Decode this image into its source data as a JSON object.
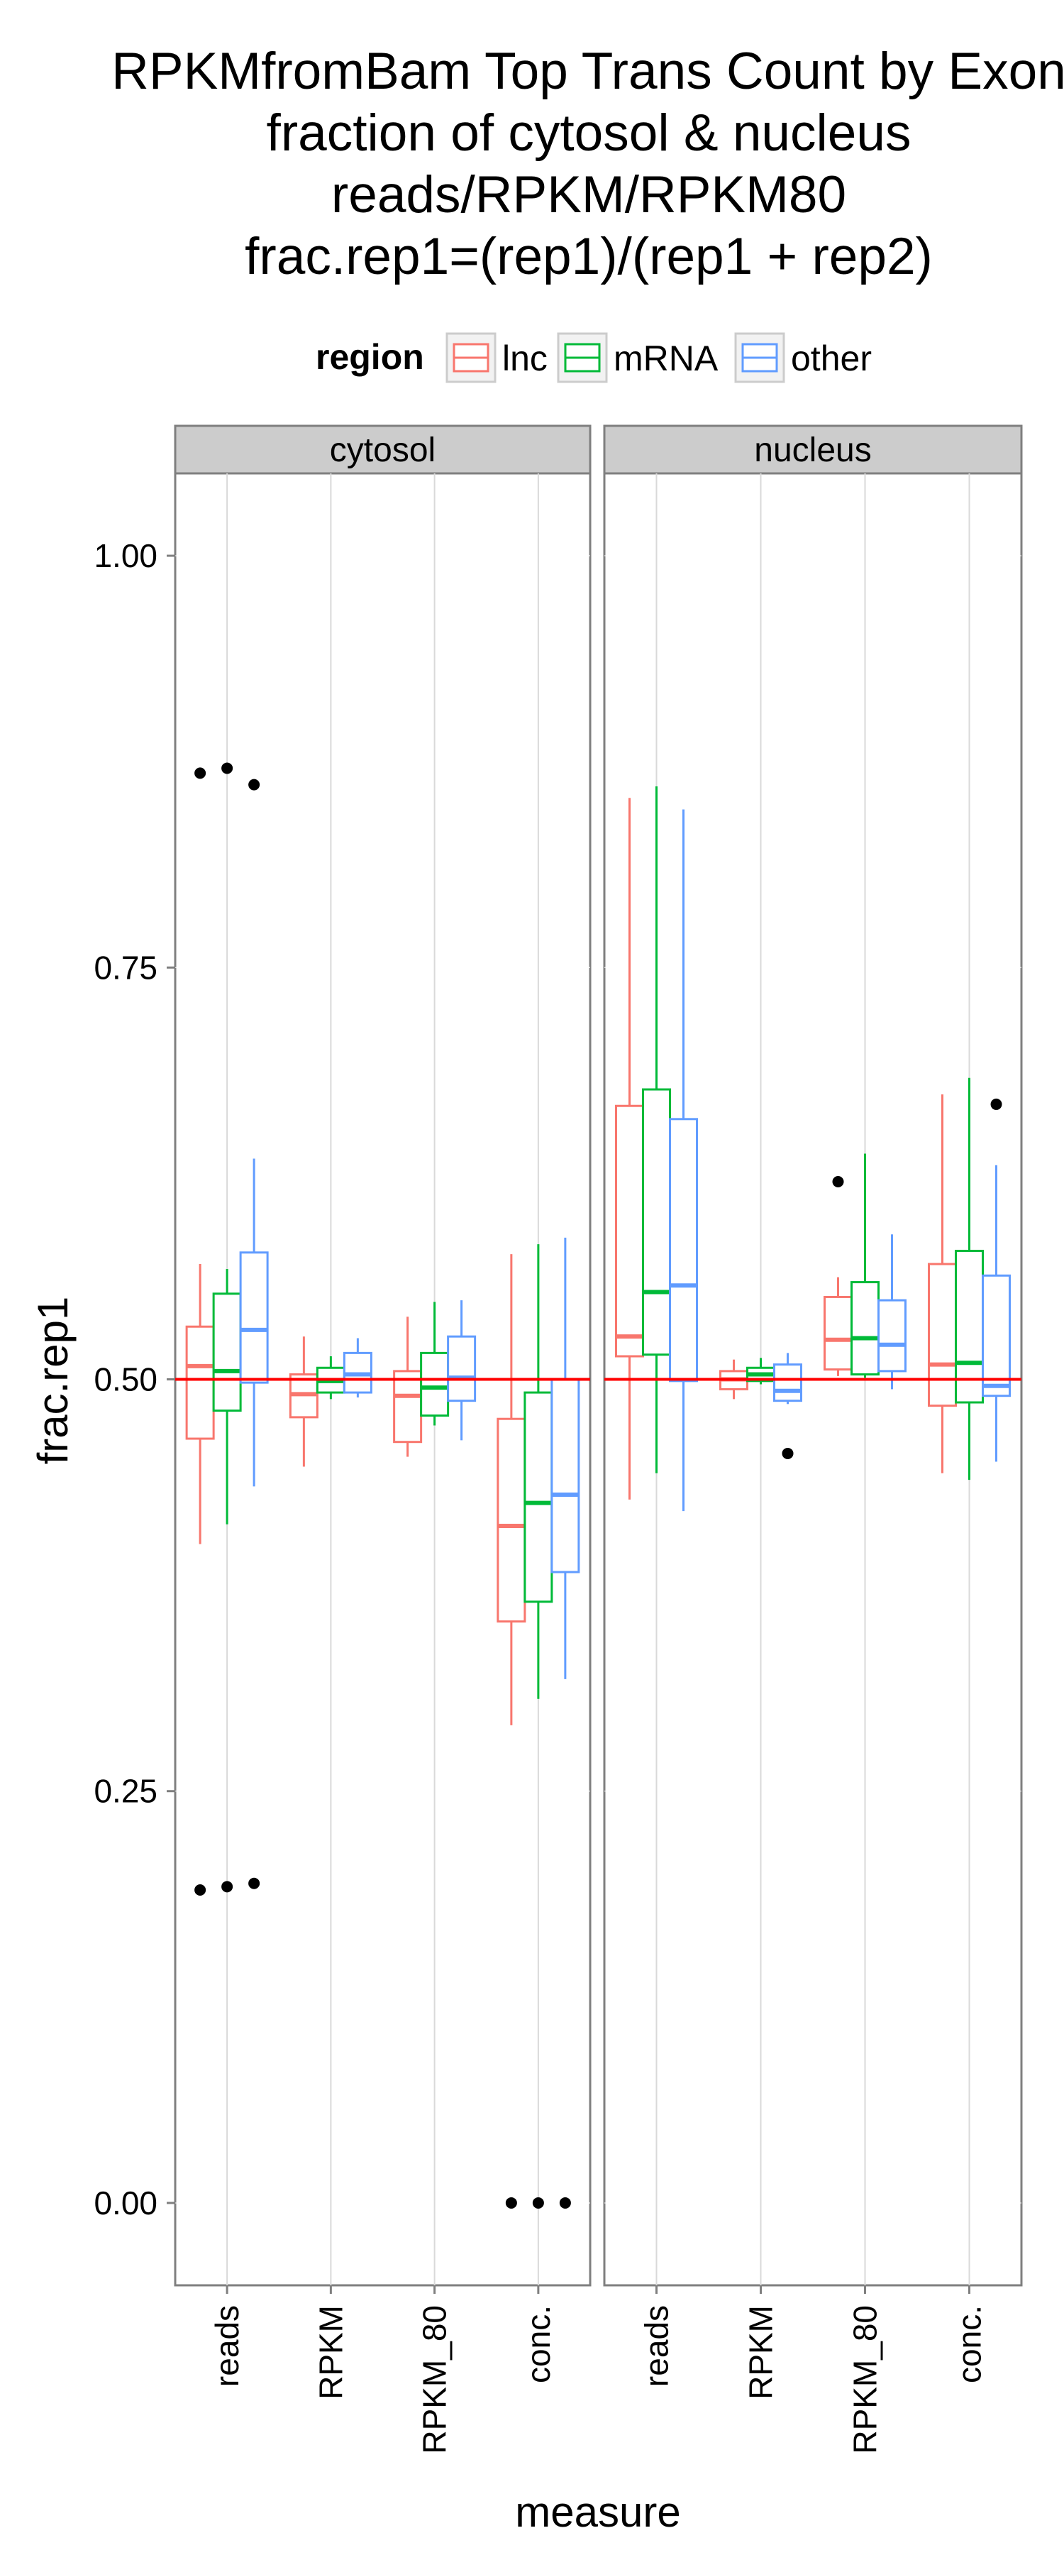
{
  "chart_data": {
    "type": "boxplot",
    "title_lines": [
      "RPKMfromBam Top Trans Count by Exon",
      "fraction of cytosol & nucleus",
      "reads/RPKM/RPKM80",
      "frac.rep1=(rep1)/(rep1 + rep2)"
    ],
    "xlabel": "measure",
    "ylabel": "frac.rep1",
    "ylim": [
      -0.05,
      1.05
    ],
    "y_ticks": [
      0.0,
      0.25,
      0.5,
      0.75,
      1.0
    ],
    "y_tick_labels": [
      "0.00",
      "0.25",
      "0.50",
      "0.75",
      "1.00"
    ],
    "categories": [
      "reads",
      "RPKM",
      "RPKM_80",
      "conc."
    ],
    "reference_line": 0.5,
    "legend": {
      "title": "region",
      "position": "top",
      "entries": [
        "lnc",
        "mRNA",
        "other"
      ]
    },
    "series_colors": {
      "lnc": "#F8766D",
      "mRNA": "#00BA38",
      "other": "#619CFF"
    },
    "panels": [
      {
        "label": "cytosol",
        "boxes": {
          "lnc": [
            {
              "lo": 0.4,
              "q1": 0.464,
              "med": 0.508,
              "q3": 0.532,
              "hi": 0.57,
              "out": [
                0.868,
                0.19
              ]
            },
            {
              "lo": 0.447,
              "q1": 0.477,
              "med": 0.491,
              "q3": 0.503,
              "hi": 0.526,
              "out": []
            },
            {
              "lo": 0.453,
              "q1": 0.462,
              "med": 0.49,
              "q3": 0.505,
              "hi": 0.538,
              "out": []
            },
            {
              "lo": 0.29,
              "q1": 0.353,
              "med": 0.411,
              "q3": 0.476,
              "hi": 0.576,
              "out": [
                0.0
              ]
            }
          ],
          "mRNA": [
            {
              "lo": 0.412,
              "q1": 0.481,
              "med": 0.505,
              "q3": 0.552,
              "hi": 0.567,
              "out": [
                0.871,
                0.192
              ]
            },
            {
              "lo": 0.488,
              "q1": 0.492,
              "med": 0.499,
              "q3": 0.507,
              "hi": 0.514,
              "out": []
            },
            {
              "lo": 0.472,
              "q1": 0.478,
              "med": 0.495,
              "q3": 0.516,
              "hi": 0.547,
              "out": []
            },
            {
              "lo": 0.306,
              "q1": 0.365,
              "med": 0.425,
              "q3": 0.492,
              "hi": 0.582,
              "out": [
                0.0
              ]
            }
          ],
          "other": [
            {
              "lo": 0.435,
              "q1": 0.498,
              "med": 0.53,
              "q3": 0.577,
              "hi": 0.634,
              "out": [
                0.861,
                0.194
              ]
            },
            {
              "lo": 0.489,
              "q1": 0.492,
              "med": 0.503,
              "q3": 0.516,
              "hi": 0.525,
              "out": []
            },
            {
              "lo": 0.463,
              "q1": 0.487,
              "med": 0.501,
              "q3": 0.526,
              "hi": 0.548,
              "out": []
            },
            {
              "lo": 0.318,
              "q1": 0.383,
              "med": 0.43,
              "q3": 0.5,
              "hi": 0.586,
              "out": [
                0.0
              ]
            }
          ]
        }
      },
      {
        "label": "nucleus",
        "boxes": {
          "lnc": [
            {
              "lo": 0.427,
              "q1": 0.514,
              "med": 0.526,
              "q3": 0.666,
              "hi": 0.853,
              "out": []
            },
            {
              "lo": 0.488,
              "q1": 0.494,
              "med": 0.5,
              "q3": 0.505,
              "hi": 0.512,
              "out": []
            },
            {
              "lo": 0.502,
              "q1": 0.506,
              "med": 0.524,
              "q3": 0.55,
              "hi": 0.562,
              "out": [
                0.62
              ]
            },
            {
              "lo": 0.443,
              "q1": 0.484,
              "med": 0.509,
              "q3": 0.57,
              "hi": 0.673,
              "out": []
            }
          ],
          "mRNA": [
            {
              "lo": 0.443,
              "q1": 0.515,
              "med": 0.553,
              "q3": 0.676,
              "hi": 0.86,
              "out": []
            },
            {
              "lo": 0.497,
              "q1": 0.499,
              "med": 0.503,
              "q3": 0.507,
              "hi": 0.513,
              "out": []
            },
            {
              "lo": 0.501,
              "q1": 0.503,
              "med": 0.525,
              "q3": 0.559,
              "hi": 0.637,
              "out": []
            },
            {
              "lo": 0.439,
              "q1": 0.486,
              "med": 0.51,
              "q3": 0.578,
              "hi": 0.683,
              "out": []
            }
          ],
          "other": [
            {
              "lo": 0.42,
              "q1": 0.499,
              "med": 0.557,
              "q3": 0.658,
              "hi": 0.846,
              "out": []
            },
            {
              "lo": 0.485,
              "q1": 0.487,
              "med": 0.493,
              "q3": 0.509,
              "hi": 0.516,
              "out": [
                0.455
              ]
            },
            {
              "lo": 0.494,
              "q1": 0.505,
              "med": 0.521,
              "q3": 0.548,
              "hi": 0.588,
              "out": []
            },
            {
              "lo": 0.45,
              "q1": 0.49,
              "med": 0.496,
              "q3": 0.563,
              "hi": 0.63,
              "out": [
                0.667
              ]
            }
          ]
        }
      }
    ]
  }
}
